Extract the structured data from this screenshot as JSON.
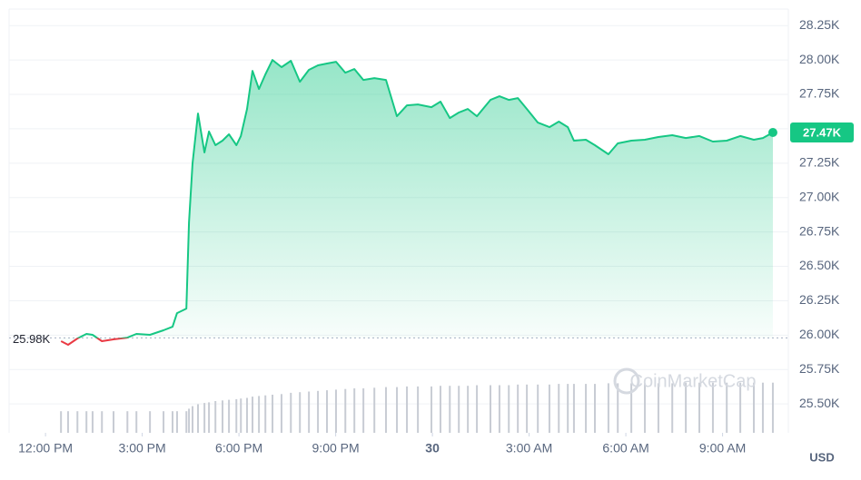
{
  "chart_data": {
    "type": "line",
    "x": [
      0.48,
      0.7,
      0.99,
      1.27,
      1.46,
      1.75,
      2.11,
      2.54,
      2.82,
      3.24,
      3.66,
      3.94,
      4.08,
      4.37,
      4.45,
      4.56,
      4.73,
      4.93,
      5.07,
      5.27,
      5.49,
      5.69,
      5.92,
      6.06,
      6.25,
      6.42,
      6.62,
      6.82,
      7.04,
      7.32,
      7.61,
      7.89,
      8.17,
      8.45,
      8.73,
      9.01,
      9.3,
      9.58,
      9.86,
      10.2,
      10.56,
      10.9,
      11.21,
      11.55,
      11.97,
      12.25,
      12.54,
      12.82,
      13.1,
      13.38,
      13.8,
      14.08,
      14.37,
      14.65,
      14.93,
      15.27,
      15.63,
      15.92,
      16.2,
      16.39,
      16.76,
      17.04,
      17.46,
      17.75,
      18.17,
      18.59,
      19.01,
      19.44,
      19.86,
      20.28,
      20.7,
      21.13,
      21.55,
      21.97,
      22.25,
      22.56
    ],
    "series": [
      {
        "color": "#16c784",
        "below_color": "#ea3943",
        "values": [
          25956,
          25930,
          25976,
          26009,
          26002,
          25956,
          25969,
          25982,
          26009,
          26002,
          26035,
          26061,
          26160,
          26193,
          26820,
          27249,
          27611,
          27328,
          27480,
          27381,
          27414,
          27460,
          27381,
          27447,
          27644,
          27921,
          27789,
          27895,
          28000,
          27948,
          27994,
          27842,
          27928,
          27961,
          27974,
          27987,
          27908,
          27934,
          27855,
          27868,
          27855,
          27591,
          27670,
          27677,
          27657,
          27697,
          27578,
          27618,
          27644,
          27591,
          27710,
          27736,
          27710,
          27723,
          27644,
          27545,
          27512,
          27552,
          27512,
          27414,
          27420,
          27381,
          27315,
          27394,
          27414,
          27420,
          27440,
          27453,
          27433,
          27447,
          27407,
          27414,
          27447,
          27420,
          27433,
          27473
        ]
      }
    ],
    "volume": {
      "color": "#c8ccd4",
      "y2lim": [
        0,
        100
      ],
      "values": [
        34,
        34,
        34,
        34,
        34,
        34,
        34,
        34,
        34,
        34,
        34,
        34,
        34,
        34,
        38,
        42,
        45,
        47,
        48,
        50,
        51,
        52,
        53,
        54,
        55,
        57,
        58,
        59,
        60,
        61,
        63,
        64,
        65,
        66,
        67,
        68,
        69,
        70,
        70,
        71,
        72,
        72,
        73,
        73,
        73,
        74,
        74,
        74,
        74,
        75,
        75,
        75,
        75,
        76,
        76,
        76,
        76,
        77,
        77,
        77,
        77,
        77,
        78,
        78,
        78,
        78,
        78,
        78,
        79,
        79,
        79,
        79,
        79,
        79,
        79,
        79
      ]
    },
    "reference": {
      "value": 25980,
      "label": "25.98K"
    },
    "current_label": "27.47K",
    "ylim": [
      25290,
      28370
    ],
    "yticks": [
      {
        "value": 25500,
        "label": "25.50K"
      },
      {
        "value": 25750,
        "label": "25.75K"
      },
      {
        "value": 26000,
        "label": "26.00K"
      },
      {
        "value": 26250,
        "label": "26.25K"
      },
      {
        "value": 26500,
        "label": "26.50K"
      },
      {
        "value": 26750,
        "label": "26.75K"
      },
      {
        "value": 27000,
        "label": "27.00K"
      },
      {
        "value": 27250,
        "label": "27.25K"
      },
      {
        "value": 27500,
        "label": "27.50K"
      },
      {
        "value": 27750,
        "label": "27.75K"
      },
      {
        "value": 28000,
        "label": "28.00K"
      },
      {
        "value": 28250,
        "label": "28.25K"
      }
    ],
    "xlim": [
      -1.13,
      23.04
    ],
    "xticks": [
      {
        "value": 0,
        "label": "12:00 PM"
      },
      {
        "value": 3,
        "label": "3:00 PM"
      },
      {
        "value": 6,
        "label": "6:00 PM"
      },
      {
        "value": 9,
        "label": "9:00 PM"
      },
      {
        "value": 12,
        "label": "30"
      },
      {
        "value": 15,
        "label": "3:00 AM"
      },
      {
        "value": 18,
        "label": "6:00 AM"
      },
      {
        "value": 21,
        "label": "9:00 AM"
      }
    ],
    "currency": "USD",
    "watermark": "CoinMarketCap",
    "grid": true
  }
}
